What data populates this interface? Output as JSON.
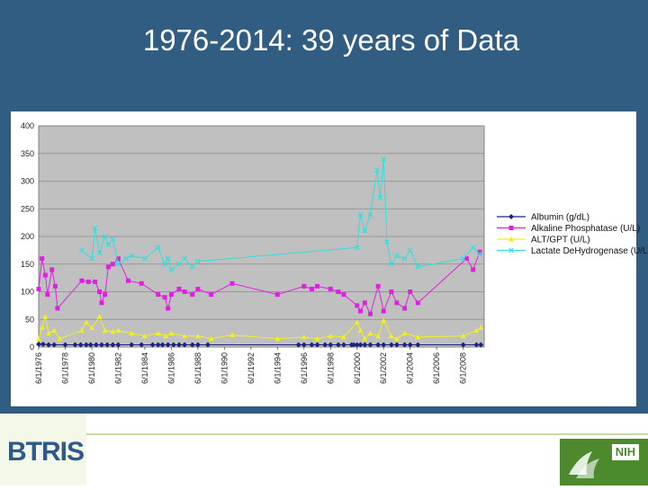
{
  "slide": {
    "title": "1976-2014: 39 years of Data",
    "left_logo_text": "BTRIS",
    "right_logo_text": "NIH"
  },
  "colors": {
    "slide_background": "#325d83",
    "plot_background": "#c0c0c0",
    "albumin": "#1a237e",
    "alkaline_phosphatase": "#e020e0",
    "alt_gpt": "#f0f020",
    "ldh": "#30e0e0"
  },
  "chart_data": {
    "type": "line",
    "title": "",
    "xlabel": "",
    "ylabel": "",
    "ylim": [
      0,
      400
    ],
    "yticks": [
      0,
      50,
      100,
      150,
      200,
      250,
      300,
      350,
      400
    ],
    "x_range": [
      "1976-06-01",
      "2009-12-31"
    ],
    "x_tick_labels": [
      "6/1/1976",
      "6/1/1978",
      "6/1/1980",
      "6/1/1982",
      "6/1/1984",
      "6/1/1986",
      "6/1/1988",
      "6/1/1990",
      "6/1/1992",
      "6/1/1994",
      "6/1/1996",
      "6/1/1998",
      "6/1/2000",
      "6/1/2002",
      "6/1/2004",
      "6/1/2006",
      "6/1/2008"
    ],
    "grid": "horizontal",
    "legend_position": "right",
    "series": [
      {
        "name": "Albumin (g/dL)",
        "color": "#1a237e",
        "marker": "diamond",
        "points": [
          [
            "1976-06-01",
            5
          ],
          [
            "1976-10-01",
            5
          ],
          [
            "1977-03-01",
            4
          ],
          [
            "1977-08-01",
            4
          ],
          [
            "1978-06-01",
            4
          ],
          [
            "1979-03-01",
            4
          ],
          [
            "1979-08-01",
            4
          ],
          [
            "1980-01-01",
            4
          ],
          [
            "1980-05-01",
            4
          ],
          [
            "1980-10-01",
            4
          ],
          [
            "1981-03-01",
            4
          ],
          [
            "1981-08-01",
            4
          ],
          [
            "1982-01-01",
            4
          ],
          [
            "1982-06-01",
            4
          ],
          [
            "1983-06-01",
            4
          ],
          [
            "1984-03-01",
            4
          ],
          [
            "1985-01-01",
            4
          ],
          [
            "1985-06-01",
            4
          ],
          [
            "1985-10-01",
            4
          ],
          [
            "1986-03-01",
            4
          ],
          [
            "1986-08-01",
            4
          ],
          [
            "1987-01-01",
            4
          ],
          [
            "1987-06-01",
            4
          ],
          [
            "1988-01-01",
            4
          ],
          [
            "1988-06-01",
            4
          ],
          [
            "1989-03-01",
            4
          ],
          [
            "1996-01-01",
            4
          ],
          [
            "1996-06-01",
            4
          ],
          [
            "1997-01-01",
            4
          ],
          [
            "1997-06-01",
            4
          ],
          [
            "1998-01-01",
            4
          ],
          [
            "1998-06-01",
            4
          ],
          [
            "1999-01-01",
            4
          ],
          [
            "1999-06-01",
            4
          ],
          [
            "2000-01-01",
            4
          ],
          [
            "2000-03-01",
            4
          ],
          [
            "2000-06-01",
            4
          ],
          [
            "2000-09-01",
            4
          ],
          [
            "2001-01-01",
            4
          ],
          [
            "2001-06-01",
            4
          ],
          [
            "2002-01-01",
            4
          ],
          [
            "2002-06-01",
            4
          ],
          [
            "2003-01-01",
            4
          ],
          [
            "2003-06-01",
            4
          ],
          [
            "2004-01-01",
            4
          ],
          [
            "2004-06-01",
            4
          ],
          [
            "2005-01-01",
            4
          ],
          [
            "2008-06-01",
            4
          ],
          [
            "2009-06-01",
            4
          ],
          [
            "2009-10-01",
            4
          ]
        ]
      },
      {
        "name": "Alkaline Phosphatase (U/L)",
        "color": "#e020e0",
        "marker": "square",
        "points": [
          [
            "1976-06-01",
            105
          ],
          [
            "1976-09-01",
            160
          ],
          [
            "1976-12-01",
            130
          ],
          [
            "1977-02-01",
            95
          ],
          [
            "1977-06-01",
            140
          ],
          [
            "1977-09-01",
            110
          ],
          [
            "1977-11-01",
            70
          ],
          [
            "1979-09-01",
            120
          ],
          [
            "1980-03-01",
            118
          ],
          [
            "1980-09-01",
            118
          ],
          [
            "1981-01-01",
            100
          ],
          [
            "1981-03-01",
            80
          ],
          [
            "1981-06-01",
            95
          ],
          [
            "1981-09-01",
            145
          ],
          [
            "1982-01-01",
            150
          ],
          [
            "1982-06-01",
            160
          ],
          [
            "1983-03-01",
            120
          ],
          [
            "1984-03-01",
            115
          ],
          [
            "1985-06-01",
            95
          ],
          [
            "1985-12-01",
            90
          ],
          [
            "1986-03-01",
            70
          ],
          [
            "1986-06-01",
            95
          ],
          [
            "1987-01-01",
            105
          ],
          [
            "1987-06-01",
            100
          ],
          [
            "1988-01-01",
            95
          ],
          [
            "1988-06-01",
            105
          ],
          [
            "1989-06-01",
            95
          ],
          [
            "1991-01-01",
            115
          ],
          [
            "1994-06-01",
            95
          ],
          [
            "1996-06-01",
            110
          ],
          [
            "1997-01-01",
            105
          ],
          [
            "1997-06-01",
            110
          ],
          [
            "1998-06-01",
            105
          ],
          [
            "1999-01-01",
            100
          ],
          [
            "1999-06-01",
            95
          ],
          [
            "2000-06-01",
            75
          ],
          [
            "2000-09-01",
            65
          ],
          [
            "2001-01-01",
            80
          ],
          [
            "2001-06-01",
            60
          ],
          [
            "2002-01-01",
            110
          ],
          [
            "2002-06-01",
            65
          ],
          [
            "2003-01-01",
            100
          ],
          [
            "2003-06-01",
            80
          ],
          [
            "2004-01-01",
            70
          ],
          [
            "2004-06-01",
            100
          ],
          [
            "2005-01-01",
            80
          ],
          [
            "2008-09-01",
            160
          ],
          [
            "2009-03-01",
            140
          ],
          [
            "2009-09-01",
            172
          ]
        ]
      },
      {
        "name": "ALT/GPT (U/L)",
        "color": "#f0f020",
        "marker": "triangle",
        "points": [
          [
            "1976-06-01",
            15
          ],
          [
            "1976-09-01",
            35
          ],
          [
            "1976-12-01",
            55
          ],
          [
            "1977-03-01",
            25
          ],
          [
            "1977-08-01",
            30
          ],
          [
            "1978-01-01",
            15
          ],
          [
            "1979-09-01",
            30
          ],
          [
            "1980-01-01",
            45
          ],
          [
            "1980-06-01",
            35
          ],
          [
            "1981-01-01",
            55
          ],
          [
            "1981-06-01",
            30
          ],
          [
            "1982-01-01",
            28
          ],
          [
            "1982-06-01",
            30
          ],
          [
            "1983-06-01",
            25
          ],
          [
            "1984-06-01",
            20
          ],
          [
            "1985-06-01",
            25
          ],
          [
            "1986-01-01",
            20
          ],
          [
            "1986-06-01",
            25
          ],
          [
            "1987-06-01",
            20
          ],
          [
            "1988-06-01",
            20
          ],
          [
            "1989-06-01",
            15
          ],
          [
            "1991-01-01",
            22
          ],
          [
            "1994-06-01",
            15
          ],
          [
            "1996-06-01",
            18
          ],
          [
            "1997-06-01",
            15
          ],
          [
            "1998-06-01",
            20
          ],
          [
            "1999-06-01",
            18
          ],
          [
            "2000-06-01",
            45
          ],
          [
            "2000-09-01",
            30
          ],
          [
            "2001-01-01",
            15
          ],
          [
            "2001-06-01",
            25
          ],
          [
            "2002-01-01",
            20
          ],
          [
            "2002-06-01",
            48
          ],
          [
            "2003-01-01",
            20
          ],
          [
            "2003-06-01",
            15
          ],
          [
            "2004-01-01",
            25
          ],
          [
            "2005-01-01",
            18
          ],
          [
            "2008-06-01",
            20
          ],
          [
            "2009-06-01",
            30
          ],
          [
            "2009-10-01",
            35
          ]
        ]
      },
      {
        "name": "Lactate DeHydrogenase (U/L)",
        "color": "#30e0e0",
        "marker": "x",
        "points": [
          [
            "1979-09-01",
            175
          ],
          [
            "1980-06-01",
            160
          ],
          [
            "1980-09-01",
            215
          ],
          [
            "1981-01-01",
            170
          ],
          [
            "1981-06-01",
            200
          ],
          [
            "1981-09-01",
            185
          ],
          [
            "1982-01-01",
            195
          ],
          [
            "1982-06-01",
            150
          ],
          [
            "1983-01-01",
            160
          ],
          [
            "1983-06-01",
            165
          ],
          [
            "1984-06-01",
            160
          ],
          [
            "1985-06-01",
            180
          ],
          [
            "1985-12-01",
            150
          ],
          [
            "1986-03-01",
            160
          ],
          [
            "1986-06-01",
            140
          ],
          [
            "1987-01-01",
            150
          ],
          [
            "1987-06-01",
            160
          ],
          [
            "1988-01-01",
            145
          ],
          [
            "1988-06-01",
            155
          ],
          [
            "2000-06-01",
            180
          ],
          [
            "2000-09-01",
            240
          ],
          [
            "2001-01-01",
            210
          ],
          [
            "2001-06-01",
            240
          ],
          [
            "2001-12-01",
            320
          ],
          [
            "2002-03-01",
            270
          ],
          [
            "2002-06-01",
            340
          ],
          [
            "2002-09-01",
            190
          ],
          [
            "2003-01-01",
            150
          ],
          [
            "2003-06-01",
            165
          ],
          [
            "2004-01-01",
            160
          ],
          [
            "2004-06-01",
            175
          ],
          [
            "2005-01-01",
            145
          ],
          [
            "2008-06-01",
            160
          ],
          [
            "2009-03-01",
            180
          ],
          [
            "2009-09-01",
            168
          ]
        ]
      }
    ]
  }
}
